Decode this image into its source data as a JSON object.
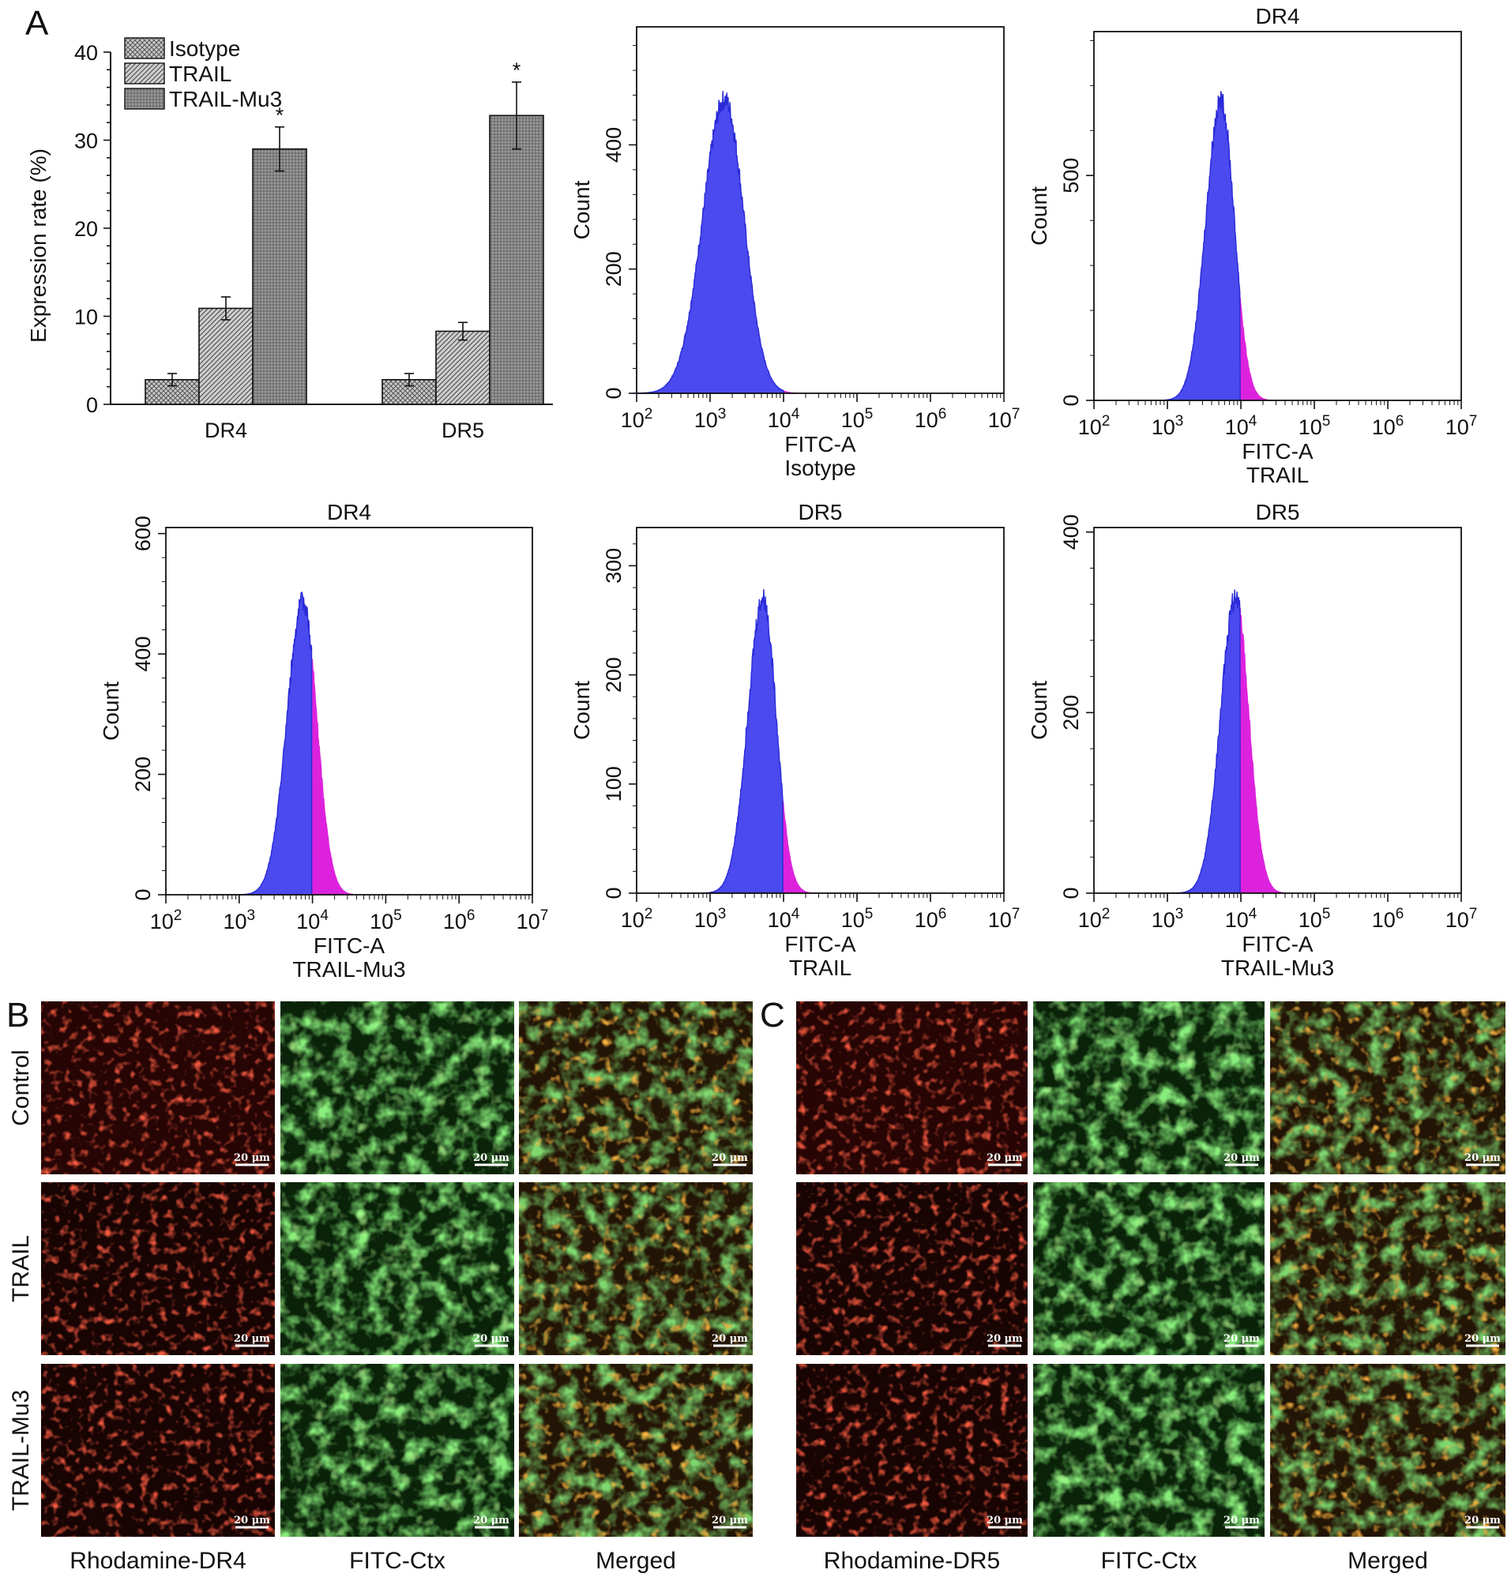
{
  "panel_letters": {
    "a": "A",
    "b": "B",
    "c": "C"
  },
  "colors": {
    "blue": "#4a4aee",
    "magenta": "#dd22dd",
    "bar_dark": "#8a8a8a",
    "bar_mid": "#a9a9a9",
    "bar_light": "#c4c4c4"
  },
  "chart_data": [
    {
      "type": "bar",
      "ylabel": "Expression rate (%)",
      "ylim": [
        0,
        40
      ],
      "yticks": [
        "0",
        "10",
        "20",
        "30",
        "40"
      ],
      "categories": [
        "DR4",
        "DR5"
      ],
      "legend_position": "top-left",
      "series": [
        {
          "name": "Isotype",
          "values": [
            2.8,
            2.8
          ],
          "errors": [
            0.7,
            0.7
          ]
        },
        {
          "name": "TRAIL",
          "values": [
            10.9,
            8.3
          ],
          "errors": [
            1.3,
            1.0
          ]
        },
        {
          "name": "TRAIL-Mu3",
          "values": [
            29.0,
            32.8
          ],
          "errors": [
            2.5,
            3.8
          ]
        }
      ],
      "significance": [
        "*",
        "*"
      ]
    },
    {
      "type": "area",
      "title": "",
      "ylabel": "Count",
      "xlabel": "FITC-A",
      "sublabel": "Isotype",
      "x_scale": "log",
      "xlim": [
        100,
        10000000
      ],
      "ylim": [
        0,
        590
      ],
      "yticks": [
        0,
        200,
        400
      ],
      "peak_log_x": 3.2,
      "peak_count": 490,
      "width_log": 0.26,
      "gate_log_x": 4.0
    },
    {
      "type": "area",
      "title": "DR4",
      "ylabel": "Count",
      "xlabel": "FITC-A",
      "sublabel": "TRAIL",
      "x_scale": "log",
      "xlim": [
        100,
        10000000
      ],
      "ylim": [
        0,
        820
      ],
      "yticks": [
        0,
        500
      ],
      "peak_log_x": 3.73,
      "peak_count": 690,
      "width_log": 0.18,
      "gate_log_x": 3.99
    },
    {
      "type": "area",
      "title": "DR4",
      "ylabel": "Count",
      "xlabel": "FITC-A",
      "sublabel": "TRAIL-Mu3",
      "x_scale": "log",
      "xlim": [
        100,
        10000000
      ],
      "ylim": [
        0,
        610
      ],
      "yticks": [
        0,
        200,
        400,
        600
      ],
      "peak_log_x": 3.87,
      "peak_count": 505,
      "width_log": 0.19,
      "gate_log_x": 3.99
    },
    {
      "type": "area",
      "title": "DR5",
      "ylabel": "Count",
      "xlabel": "FITC-A",
      "sublabel": "TRAIL",
      "x_scale": "log",
      "xlim": [
        100,
        10000000
      ],
      "ylim": [
        0,
        335
      ],
      "yticks": [
        0,
        100,
        200,
        300
      ],
      "peak_log_x": 3.72,
      "peak_count": 280,
      "width_log": 0.18,
      "gate_log_x": 3.99
    },
    {
      "type": "area",
      "title": "DR5",
      "ylabel": "Count",
      "xlabel": "FITC-A",
      "sublabel": "TRAIL-Mu3",
      "x_scale": "log",
      "xlim": [
        100,
        10000000
      ],
      "ylim": [
        0,
        405
      ],
      "yticks": [
        0,
        200,
        400
      ],
      "peak_log_x": 3.93,
      "peak_count": 340,
      "width_log": 0.18,
      "gate_log_x": 3.99
    }
  ],
  "micrographs": {
    "row_labels": [
      "Control",
      "TRAIL",
      "TRAIL-Mu3"
    ],
    "b_columns": [
      "Rhodamine-DR4",
      "FITC-Ctx",
      "Merged"
    ],
    "c_columns": [
      "Rhodamine-DR5",
      "FITC-Ctx",
      "Merged"
    ],
    "scale_bar": "20 μm"
  }
}
